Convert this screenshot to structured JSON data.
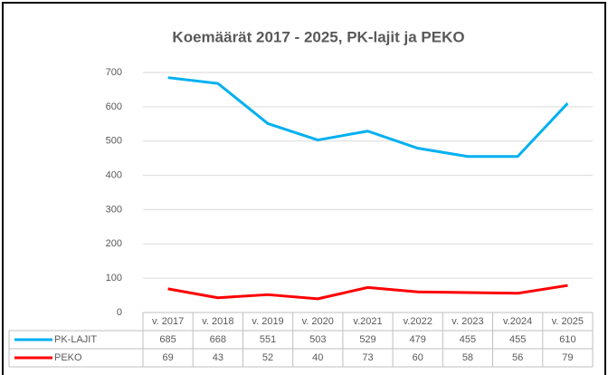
{
  "chart_data": {
    "type": "line",
    "title": "Koemäärät 2017 - 2025, PK-lajit ja PEKO",
    "categories": [
      "v. 2017",
      "v. 2018",
      "v. 2019",
      "v. 2020",
      "v.2021",
      "v.2022",
      "v. 2023",
      "v.2024",
      "v. 2025"
    ],
    "series": [
      {
        "name": "PK-LAJIT",
        "color": "#00b0f0",
        "values": [
          685,
          668,
          551,
          503,
          529,
          479,
          455,
          455,
          610
        ]
      },
      {
        "name": "PEKO",
        "color": "#ff0000",
        "values": [
          69,
          43,
          52,
          40,
          73,
          60,
          58,
          56,
          79
        ]
      }
    ],
    "ylim": [
      0,
      700
    ],
    "yticks": [
      0,
      100,
      200,
      300,
      400,
      500,
      600,
      700
    ],
    "grid": true,
    "data_table": true
  }
}
